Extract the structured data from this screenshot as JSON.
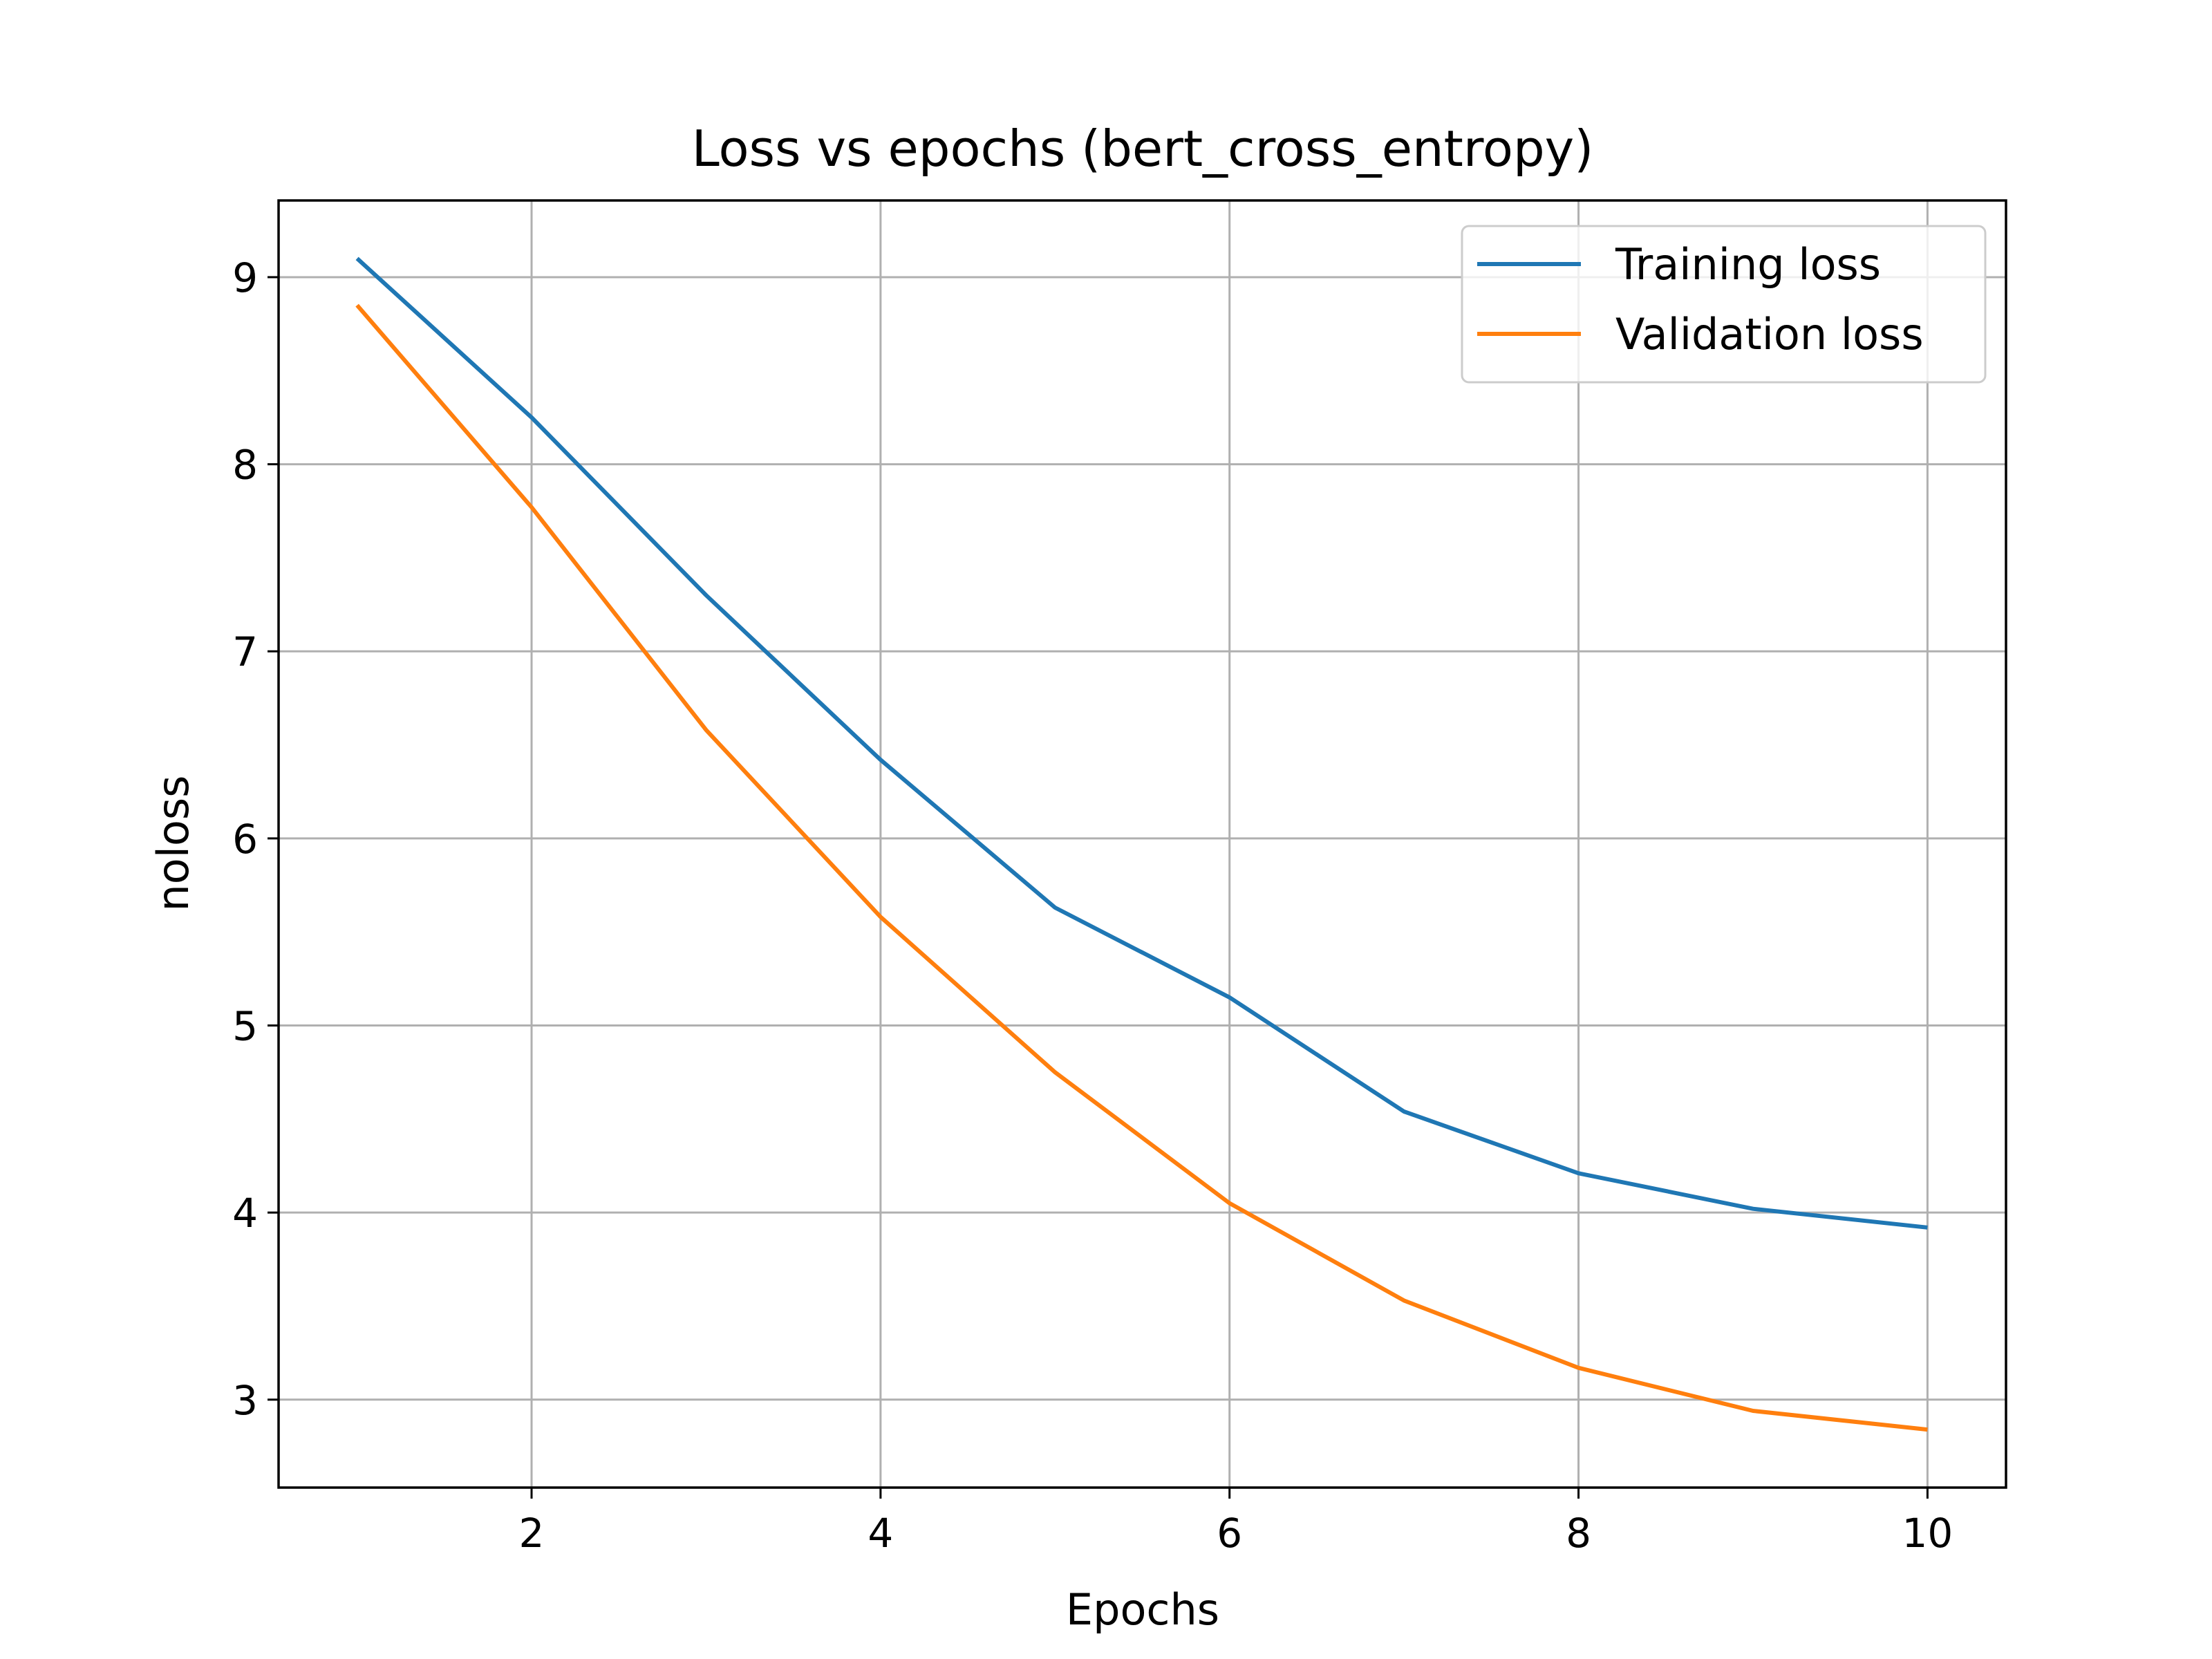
{
  "chart_data": {
    "type": "line",
    "title": "Loss vs epochs (bert_cross_entropy)",
    "xlabel": "Epochs",
    "ylabel": "noloss",
    "x": [
      1,
      2,
      3,
      4,
      5,
      6,
      7,
      8,
      9,
      10
    ],
    "xlim": [
      0.55,
      10.45
    ],
    "ylim": [
      2.53,
      9.41
    ],
    "xticks": [
      2,
      4,
      6,
      8,
      10
    ],
    "yticks": [
      3,
      4,
      5,
      6,
      7,
      8,
      9
    ],
    "grid": true,
    "legend_position": "top-right",
    "series": [
      {
        "name": "Training loss",
        "color": "#1f77b4",
        "values": [
          9.1,
          8.25,
          7.3,
          6.42,
          5.63,
          5.15,
          4.54,
          4.21,
          4.02,
          3.92
        ]
      },
      {
        "name": "Validation loss",
        "color": "#ff7f0e",
        "values": [
          8.85,
          7.77,
          6.58,
          5.58,
          4.75,
          4.05,
          3.53,
          3.17,
          2.94,
          2.84
        ]
      }
    ]
  }
}
